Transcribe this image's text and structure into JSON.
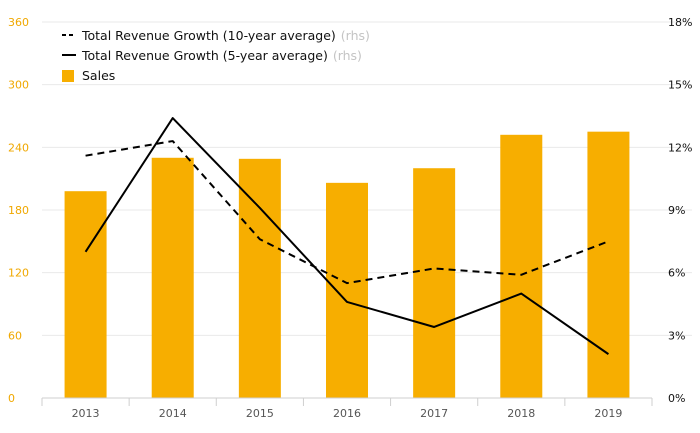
{
  "chart_data": {
    "type": "bar",
    "categories": [
      "2013",
      "2014",
      "2015",
      "2016",
      "2017",
      "2018",
      "2019"
    ],
    "series": [
      {
        "name": "Sales",
        "kind": "bar",
        "axis": "left",
        "color": "#f7ae00",
        "values": [
          198,
          230,
          229,
          206,
          220,
          252,
          255
        ]
      },
      {
        "name": "Total Revenue Growth (10-year average)",
        "kind": "line",
        "dash": true,
        "axis": "right",
        "color": "#000000",
        "values": [
          11.6,
          12.3,
          7.6,
          5.5,
          6.2,
          5.9,
          7.5
        ]
      },
      {
        "name": "Total Revenue Growth (5-year average)",
        "kind": "line",
        "dash": false,
        "axis": "right",
        "color": "#000000",
        "values": [
          7.0,
          13.4,
          9.1,
          4.6,
          3.4,
          5.0,
          2.1
        ]
      }
    ],
    "legend_suffix": "(rhs)",
    "y_left": {
      "min": 0,
      "max": 360,
      "ticks": [
        "0",
        "60",
        "120",
        "180",
        "240",
        "300",
        "360"
      ]
    },
    "y_right": {
      "min": 0,
      "max": 18,
      "ticks": [
        "0%",
        "3%",
        "6%",
        "9%",
        "12%",
        "15%",
        "18%"
      ]
    },
    "grid": true,
    "legend_position": "top-left"
  }
}
